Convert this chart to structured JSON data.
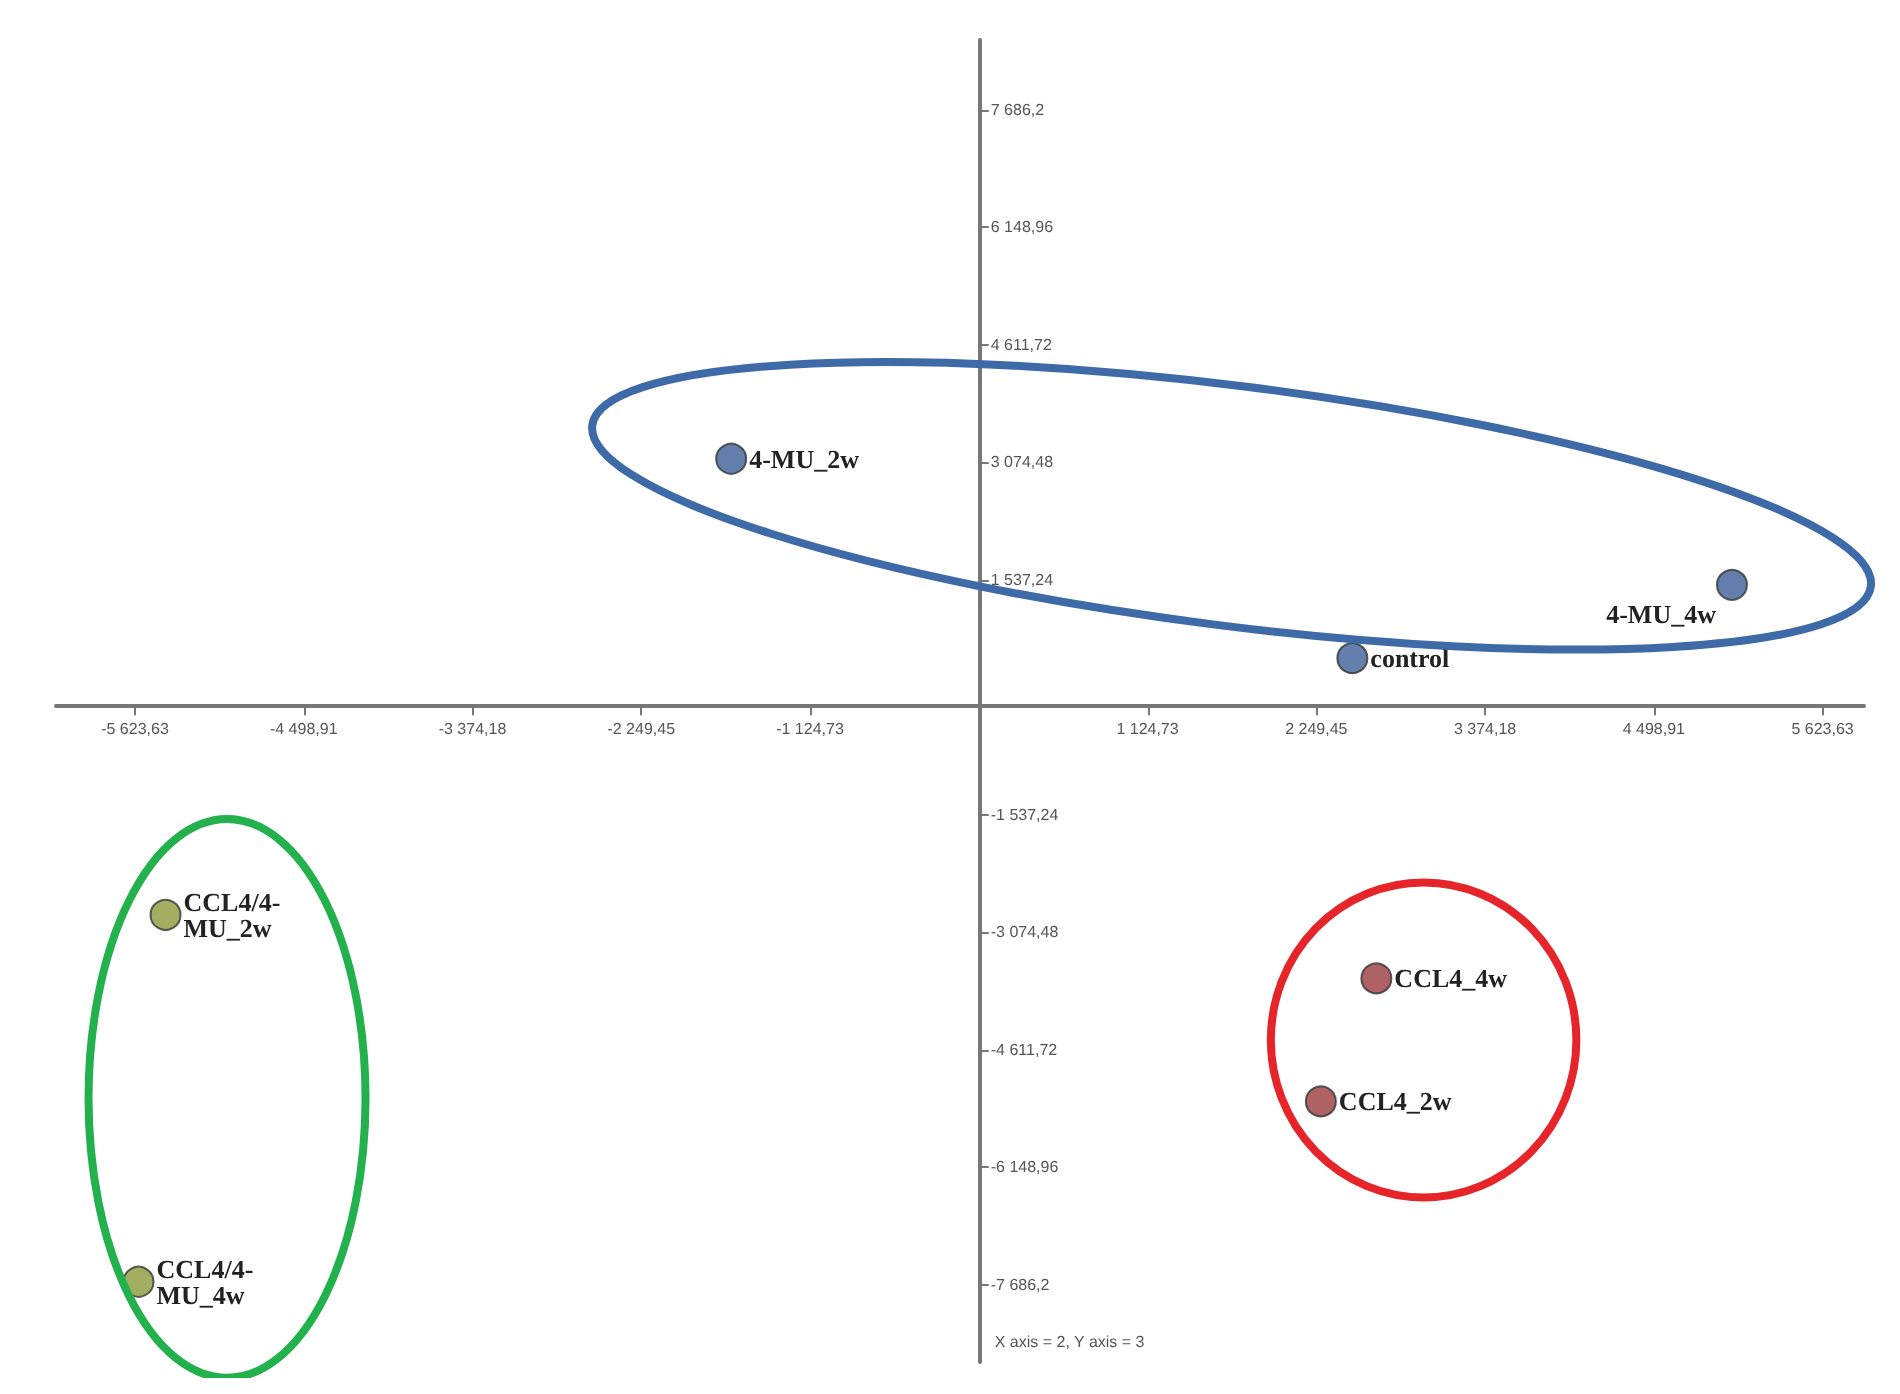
{
  "chart_data": {
    "type": "scatter",
    "xlim": [
      -6150,
      5900
    ],
    "xticks": [
      {
        "value": -5623.63,
        "label": "-5 623,63"
      },
      {
        "value": -4498.91,
        "label": "-4 498,91"
      },
      {
        "value": -3374.18,
        "label": "-3 374,18"
      },
      {
        "value": -2249.45,
        "label": "-2 249,45"
      },
      {
        "value": -1124.73,
        "label": "-1 124,73"
      },
      {
        "value": 1124.73,
        "label": "1 124,73"
      },
      {
        "value": 2249.45,
        "label": "2 249,45"
      },
      {
        "value": 3374.18,
        "label": "3 374,18"
      },
      {
        "value": 4498.91,
        "label": "4 498,91"
      },
      {
        "value": 5623.63,
        "label": "5 623,63"
      }
    ],
    "ylim": [
      -8700,
      8600
    ],
    "yticks": [
      {
        "value": 7686.2,
        "label": "7 686,2"
      },
      {
        "value": 6148.96,
        "label": "6 148,96"
      },
      {
        "value": 4611.72,
        "label": "4 611,72"
      },
      {
        "value": 3074.48,
        "label": "3 074,48"
      },
      {
        "value": 1537.24,
        "label": "1 537,24"
      },
      {
        "value": -1537.24,
        "label": "-1 537,24"
      },
      {
        "value": -3074.48,
        "label": "-3 074,48"
      },
      {
        "value": -4611.72,
        "label": "-4 611,72"
      },
      {
        "value": -6148.96,
        "label": "-6 148,96"
      },
      {
        "value": -7686.2,
        "label": "-7 686,2"
      }
    ],
    "grid": false,
    "marker": "circle",
    "series": [
      {
        "color": "#3d5f96",
        "x": [
          -1650,
          5020,
          2490
        ],
        "values": [
          3120,
          1470,
          510
        ]
      },
      {
        "color": "#8c9a3c",
        "x": [
          -5420,
          -5600
        ],
        "values": [
          -2850,
          -7650
        ]
      },
      {
        "color": "#9a3b3d",
        "x": [
          2650,
          2280
        ],
        "values": [
          -3680,
          -5290
        ]
      }
    ],
    "annotations": [
      {
        "text": "4-MU_2w",
        "x": -1650,
        "y": 3120
      },
      {
        "text": "4-MU_4w",
        "x": 5020,
        "y": 1470
      },
      {
        "text": "control",
        "x": 2490,
        "y": 510
      },
      {
        "text": "CCL4/4-\nMU_2w",
        "x": -5420,
        "y": -2850
      },
      {
        "text": "CCL4/4-\nMU_4w",
        "x": -5600,
        "y": -7650
      },
      {
        "text": "CCL4_4w",
        "x": 2650,
        "y": -3680
      },
      {
        "text": "CCL4_2w",
        "x": 2280,
        "y": -5290
      },
      "X axis = 2, Y axis = 3"
    ]
  }
}
